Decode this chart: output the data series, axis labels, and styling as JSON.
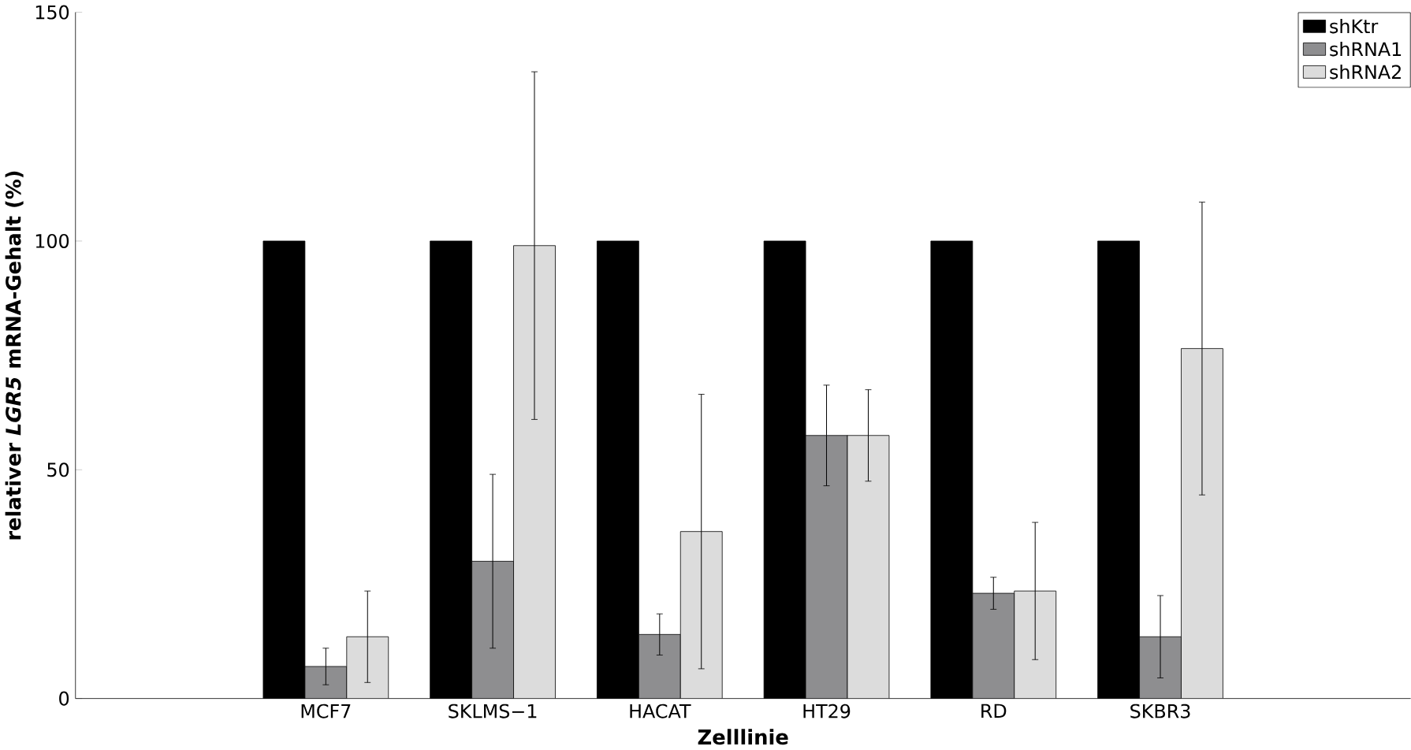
{
  "chart_data": {
    "type": "bar",
    "xlabel": "Zelllinie",
    "ylabel": "relativer *LGR5* mRNA-Gehalt (%)",
    "categories": [
      "MCF7",
      "SKLMS−1",
      "HACAT",
      "HT29",
      "RD",
      "SKBR3"
    ],
    "series": [
      {
        "name": "shKtr",
        "color": "#000000",
        "values": [
          100,
          100,
          100,
          100,
          100,
          100
        ]
      },
      {
        "name": "shRNA1",
        "color": "#8e8e90",
        "values": [
          7,
          30,
          14,
          57.5,
          23,
          13.5
        ],
        "errors": [
          4,
          19,
          4.5,
          11,
          3.5,
          9
        ]
      },
      {
        "name": "shRNA2",
        "color": "#dcdcdc",
        "values": [
          13.5,
          99,
          36.5,
          57.5,
          23.5,
          76.5
        ],
        "errors": [
          10,
          38,
          30,
          10,
          15,
          32
        ]
      }
    ],
    "ylim": [
      0,
      150
    ],
    "yticks": [
      0,
      50,
      100,
      150
    ],
    "legend": "top right",
    "grid": false
  }
}
